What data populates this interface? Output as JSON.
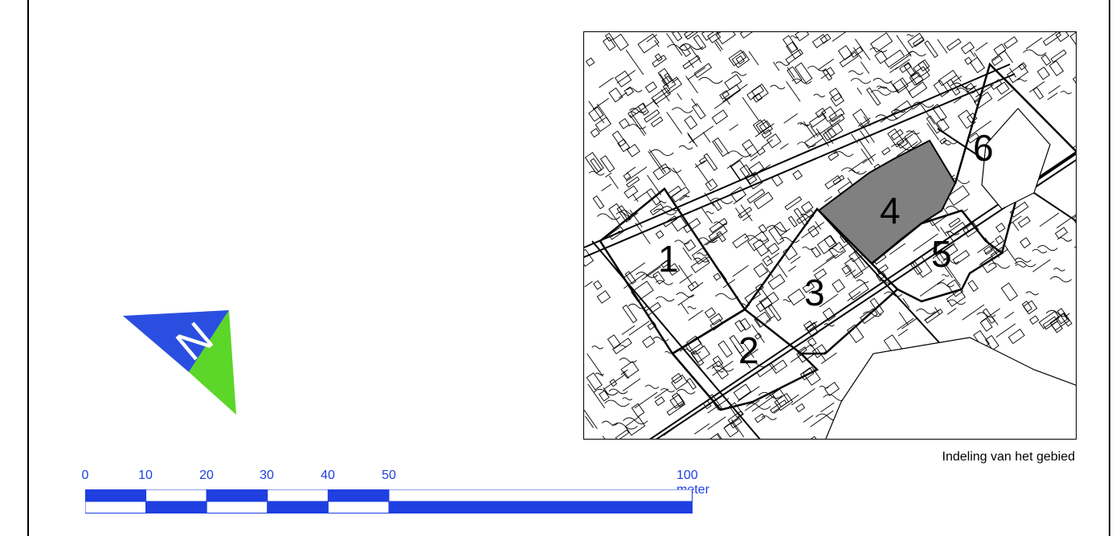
{
  "map": {
    "caption": "Indeling van het gebied",
    "area_labels": [
      "1",
      "2",
      "3",
      "4",
      "5",
      "6"
    ],
    "highlighted_area": "4",
    "colors": {
      "line": "#000000",
      "highlight": "#808080",
      "background": "#ffffff"
    }
  },
  "north_arrow": {
    "letter": "N",
    "colors": {
      "blue": "#2a4fe0",
      "green": "#5cd628",
      "letter": "#ffffff"
    }
  },
  "scale_bar": {
    "labels": [
      "0",
      "10",
      "20",
      "30",
      "40",
      "50"
    ],
    "end_label": "100 meter",
    "color": "#1f3fe0"
  }
}
